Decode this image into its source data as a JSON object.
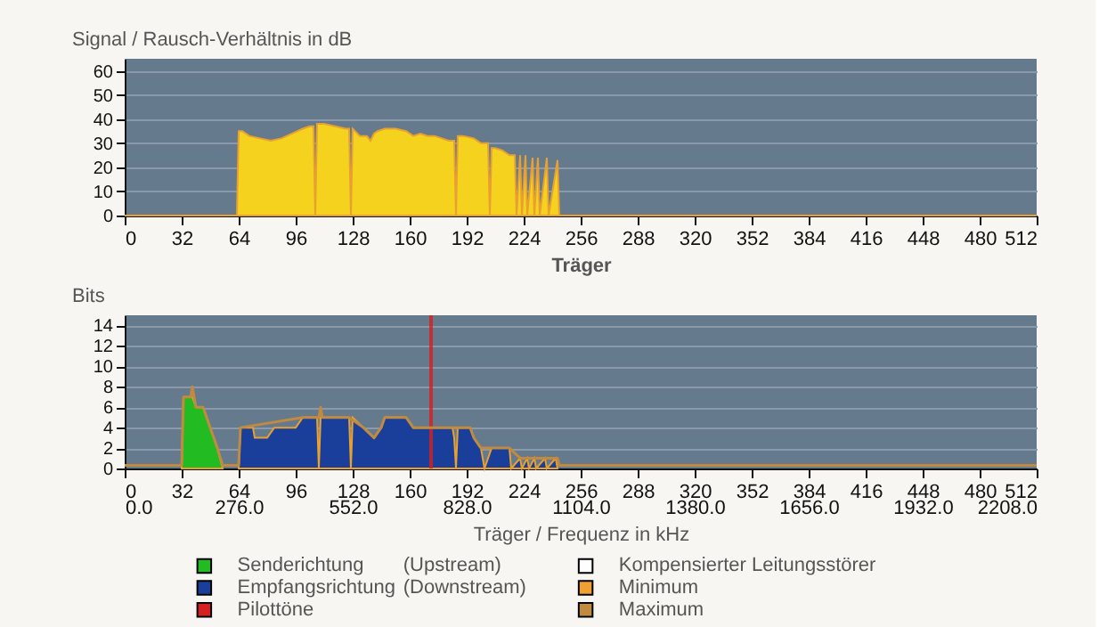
{
  "chart_data": [
    {
      "type": "area",
      "ylabel": "Signal / Rausch-Verhältnis in dB",
      "xlabel": "Träger",
      "xlim": [
        0,
        512
      ],
      "xticks": [
        0,
        32,
        64,
        96,
        128,
        160,
        192,
        224,
        256,
        288,
        320,
        352,
        384,
        416,
        448,
        480,
        512
      ],
      "ylim": [
        0,
        65
      ],
      "yticks": [
        0,
        10,
        20,
        30,
        40,
        50,
        60
      ],
      "grid": "y",
      "legend": false,
      "series": [
        {
          "color": "#f5d21e",
          "x": [
            0,
            63,
            64,
            66,
            70,
            76,
            82,
            88,
            94,
            100,
            104,
            106,
            107,
            108,
            112,
            118,
            124,
            126,
            127,
            128,
            132,
            136,
            138,
            140,
            142,
            146,
            152,
            158,
            162,
            166,
            170,
            174,
            178,
            182,
            185,
            186,
            187,
            190,
            196,
            200,
            204,
            205,
            206,
            208,
            212,
            216,
            219,
            220,
            222,
            223,
            225,
            226,
            229,
            230,
            232,
            233,
            237,
            238,
            243,
            244,
            512
          ],
          "values": [
            0,
            0,
            35,
            35,
            33,
            32,
            31,
            32,
            34,
            36,
            37,
            37,
            0,
            38,
            38,
            37,
            36,
            36,
            0,
            36,
            33,
            33,
            31,
            34,
            35,
            36,
            36,
            35,
            33,
            34,
            33,
            33,
            32,
            31,
            31,
            0,
            33,
            33,
            32,
            30,
            30,
            0,
            28,
            28,
            27,
            25,
            25,
            0,
            25,
            0,
            25,
            0,
            24,
            0,
            24,
            0,
            24,
            0,
            23,
            0,
            0
          ]
        }
      ]
    },
    {
      "type": "area",
      "ylabel": "Bits",
      "x2label": "Träger / Frequenz in kHz",
      "xlim": [
        0,
        512
      ],
      "xticks": [
        0,
        32,
        64,
        96,
        128,
        160,
        192,
        224,
        256,
        288,
        320,
        352,
        384,
        416,
        448,
        480,
        512
      ],
      "x2lim": [
        0,
        2208
      ],
      "x2ticks": [
        {
          "value": 0,
          "label": "0.0"
        },
        {
          "value": 276,
          "label": "276.0"
        },
        {
          "value": 552,
          "label": "552.0"
        },
        {
          "value": 828,
          "label": "828.0"
        },
        {
          "value": 1104,
          "label": "1104.0"
        },
        {
          "value": 1380,
          "label": "1380.0"
        },
        {
          "value": 1656,
          "label": "1656.0"
        },
        {
          "value": 1932,
          "label": "1932.0"
        },
        {
          "value": 2208,
          "label": "2208.0"
        }
      ],
      "ylim": [
        0,
        15
      ],
      "yticks": [
        0,
        2,
        4,
        6,
        8,
        10,
        12,
        14
      ],
      "grid": "y",
      "legend": "bottom",
      "series": [
        {
          "name": "Senderichtung (Upstream)",
          "color": "#22bb22",
          "x": [
            32,
            33,
            38,
            40,
            44,
            46,
            48,
            52,
            55
          ],
          "values": [
            0,
            7,
            7,
            6,
            6,
            5,
            4,
            2,
            0
          ]
        },
        {
          "name": "Empfangsrichtung (Downstream)",
          "color": "#1a3f9a",
          "x": [
            64,
            65,
            72,
            73,
            80,
            84,
            96,
            100,
            108,
            109,
            110,
            126,
            127,
            128,
            134,
            140,
            144,
            146,
            158,
            162,
            184,
            185,
            186,
            187,
            194,
            196,
            200,
            202,
            206,
            216,
            217,
            222,
            223,
            226,
            227,
            230,
            231,
            236,
            237,
            242,
            243
          ],
          "values": [
            0,
            4,
            4,
            3,
            3,
            4,
            4,
            5,
            5,
            0,
            5,
            5,
            0,
            5,
            4,
            3,
            4,
            5,
            5,
            4,
            4,
            3,
            0,
            4,
            4,
            3,
            2,
            0,
            2,
            2,
            0,
            1,
            0,
            1,
            0,
            1,
            0,
            1,
            0,
            1,
            0
          ]
        },
        {
          "name": "Pilottöne",
          "type": "bar",
          "color": "#d42020",
          "x": [
            172
          ],
          "values": [
            15
          ]
        },
        {
          "name": "Kompensierter Leitungsstörer",
          "type": "line",
          "color": "#ffffff"
        },
        {
          "name": "Minimum",
          "type": "line",
          "color": "#f0a030"
        },
        {
          "name": "Maximum",
          "type": "line",
          "color": "#c08a40",
          "x": [
            0,
            32,
            33,
            37,
            38,
            39,
            40,
            44,
            46,
            48,
            52,
            55,
            64,
            65,
            100,
            109,
            110,
            111,
            126,
            134,
            140,
            144,
            146,
            158,
            162,
            194,
            196,
            200,
            206,
            216,
            222,
            243,
            244,
            512
          ],
          "values": [
            0.3,
            0.3,
            7,
            7,
            8,
            7,
            6,
            6,
            5,
            4,
            2,
            0.3,
            0.3,
            4,
            5,
            5,
            6,
            5,
            5,
            4,
            3,
            4,
            5,
            5,
            4,
            4,
            3,
            2,
            2,
            2,
            1,
            1,
            0.3,
            0.3
          ]
        }
      ]
    }
  ]
}
